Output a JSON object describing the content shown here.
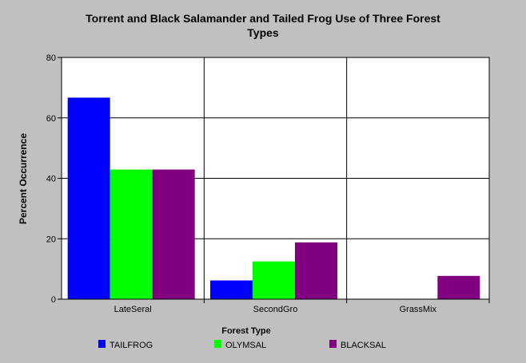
{
  "chart_data": {
    "type": "bar",
    "title_lines": [
      "Torrent and Black Salamander and Tailed Frog Use of Three  Forest",
      "Types"
    ],
    "xlabel": "Forest Type",
    "ylabel": "Percent Occurrence",
    "categories": [
      "LateSeral",
      "SecondGro",
      "GrassMix"
    ],
    "series": [
      {
        "name": "TAILFROG",
        "color": "#0000ff",
        "values": [
          66.7,
          6.2,
          0
        ]
      },
      {
        "name": "OLYMSAL",
        "color": "#00ff00",
        "values": [
          42.9,
          12.5,
          0
        ]
      },
      {
        "name": "BLACKSAL",
        "color": "#800080",
        "values": [
          42.9,
          18.8,
          7.7
        ]
      }
    ],
    "ylim": [
      0,
      80
    ],
    "yticks": [
      0,
      20,
      40,
      60,
      80
    ],
    "grid": true,
    "legend_position": "bottom"
  }
}
